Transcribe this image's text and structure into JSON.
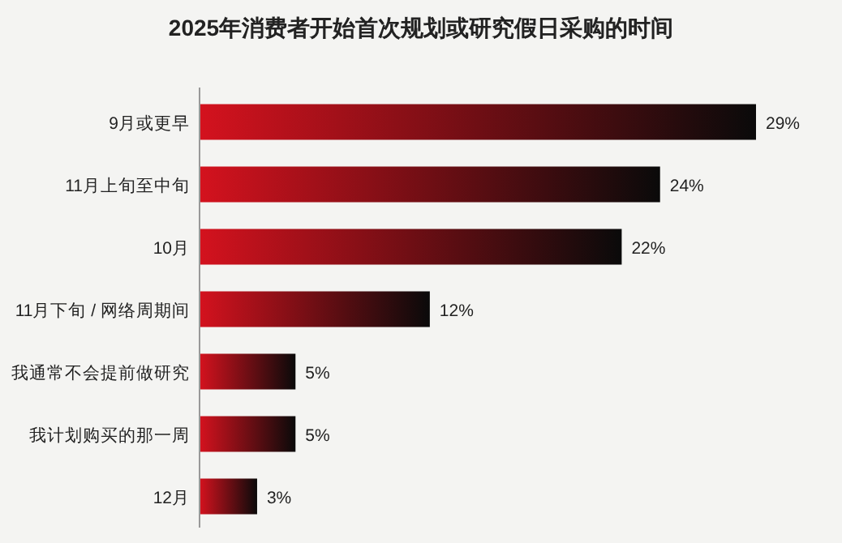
{
  "chart_data": {
    "type": "bar",
    "orientation": "horizontal",
    "title": "2025年消费者开始首次规划或研究假日采购的时间",
    "categories": [
      "9月或更早",
      "11月上旬至中旬",
      "10月",
      "11月下旬 / 网络周期间",
      "我通常不会提前做研究",
      "我计划购买的那一周",
      "12月"
    ],
    "values": [
      29,
      24,
      22,
      12,
      5,
      5,
      3
    ],
    "value_labels": [
      "29%",
      "24%",
      "22%",
      "12%",
      "5%",
      "5%",
      "3%"
    ],
    "color": "#d4121e"
  }
}
